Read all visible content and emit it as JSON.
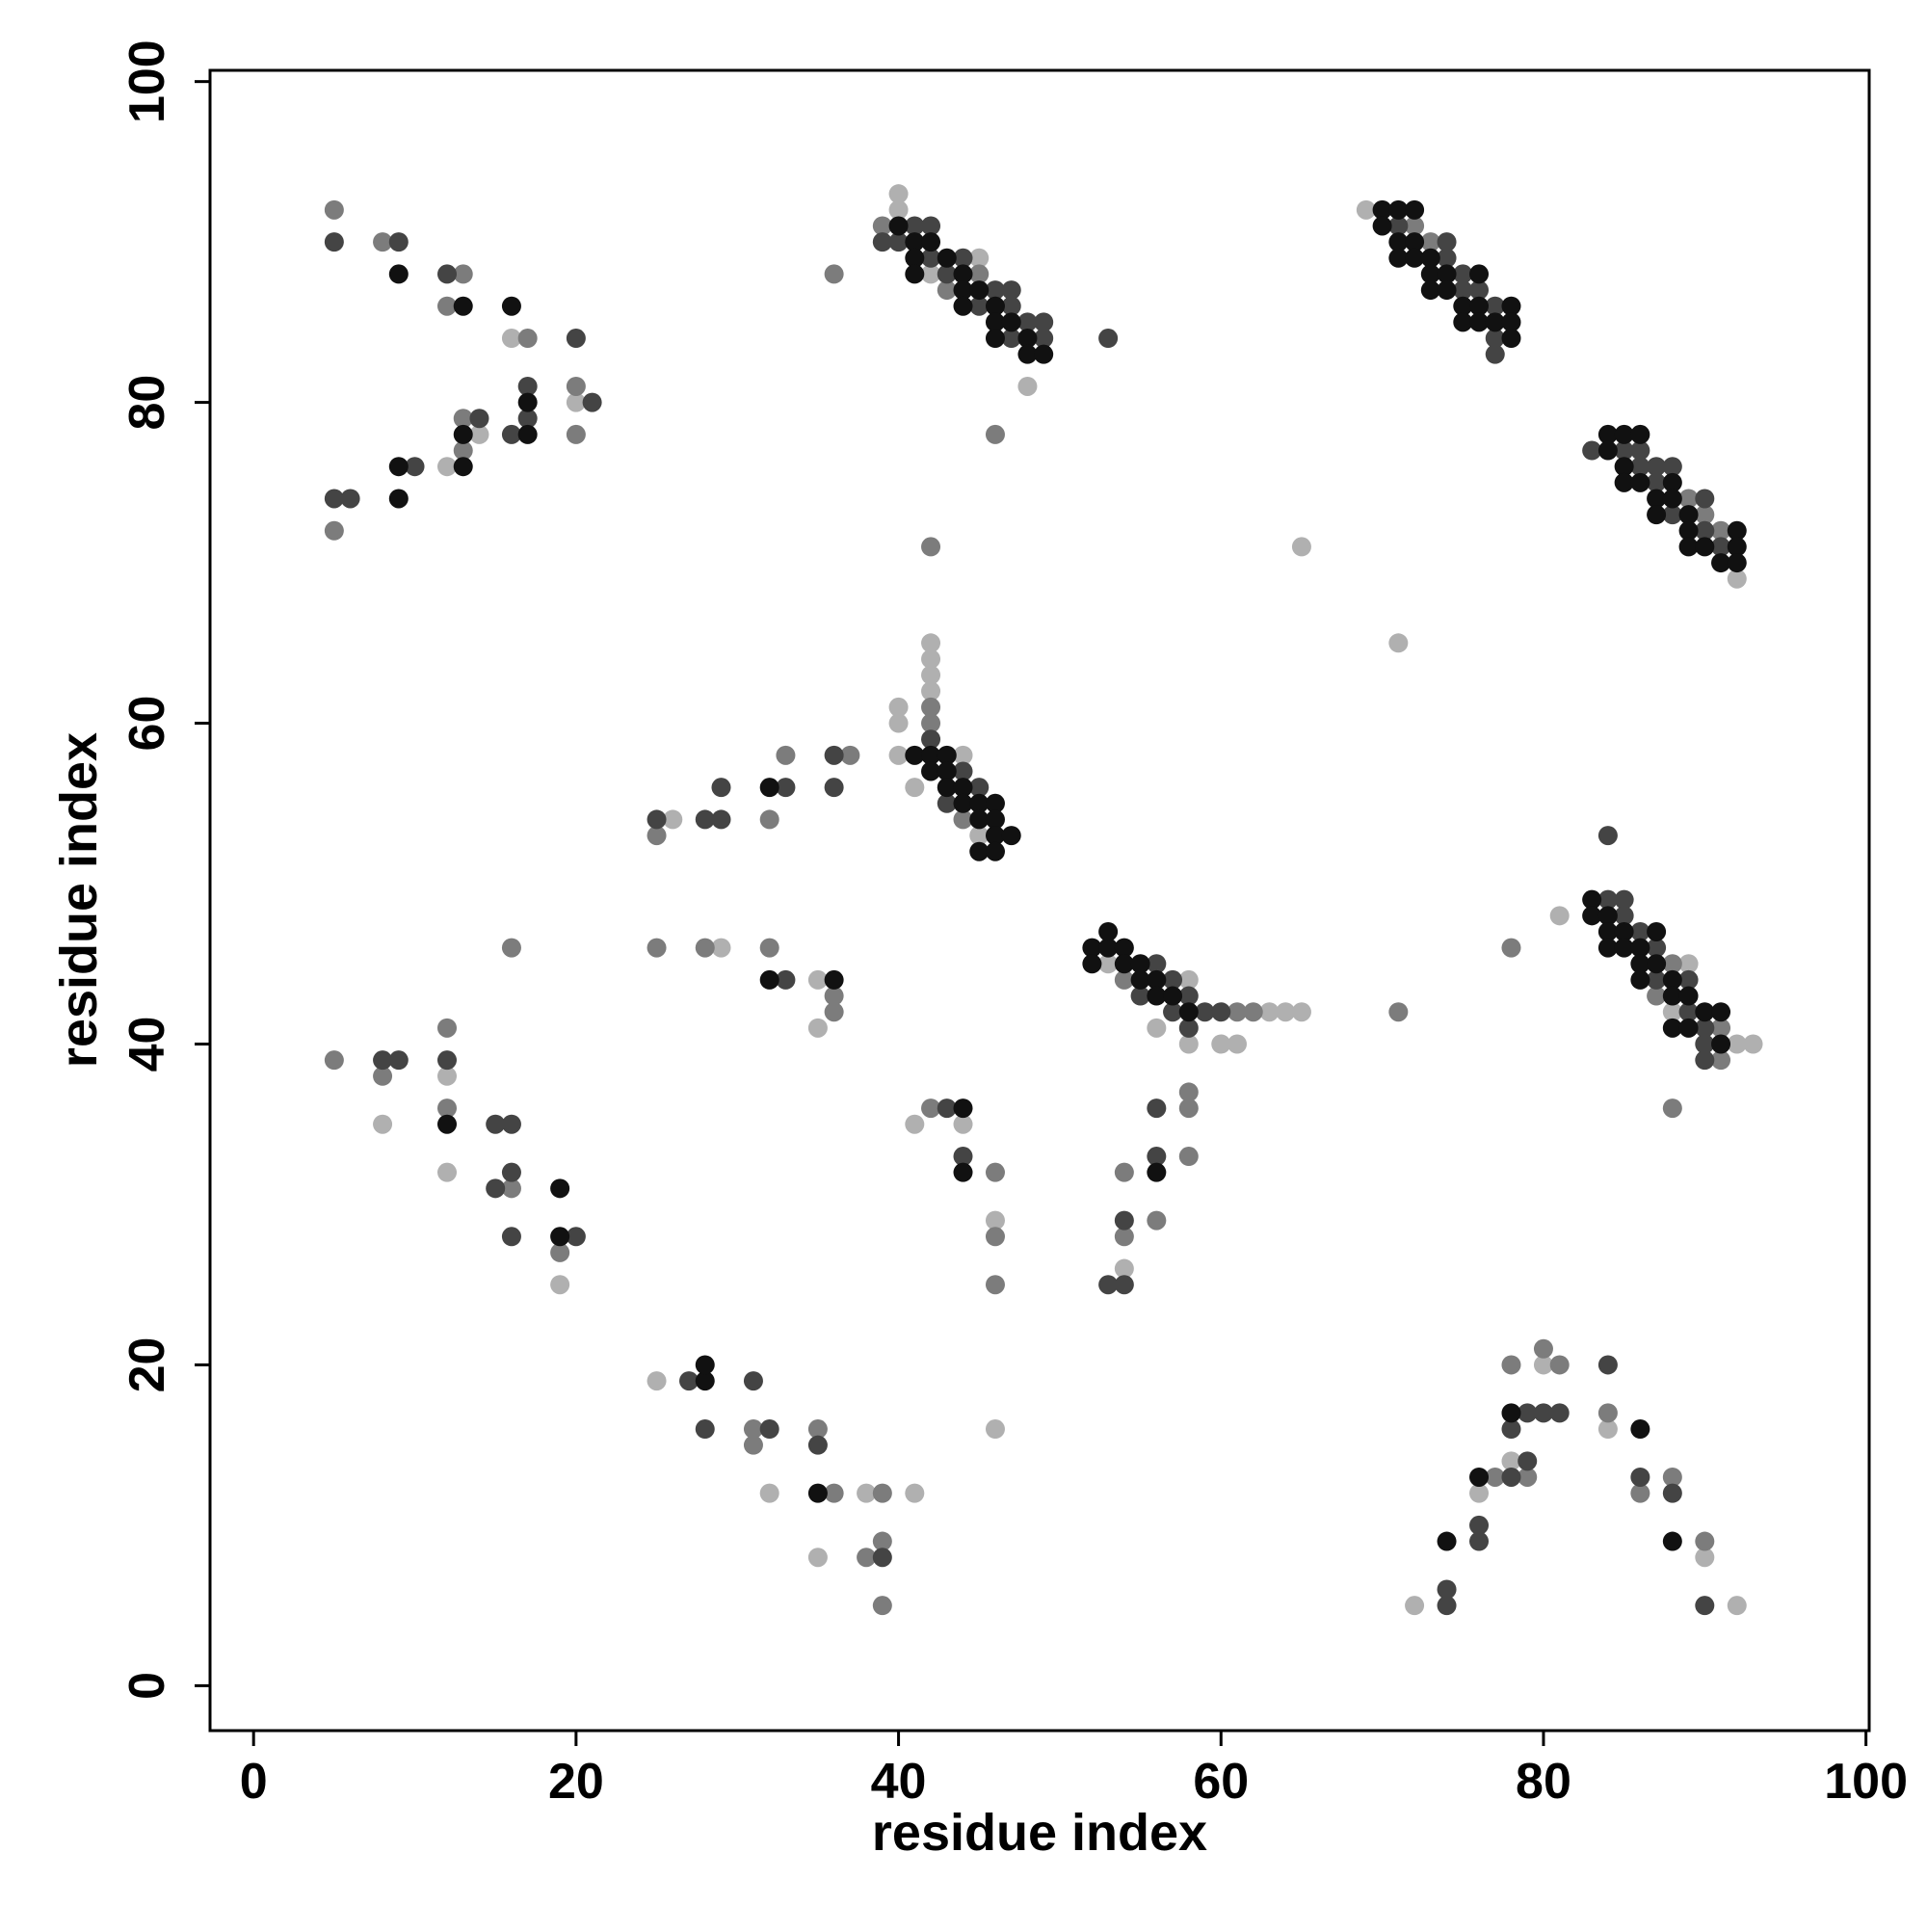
{
  "chart_data": {
    "type": "scatter",
    "x_label": "residue index",
    "y_label": "residue index",
    "xlim": [
      -2.7,
      100.2
    ],
    "ylim": [
      -2.8,
      100.7
    ],
    "xticks": [
      0,
      20,
      40,
      60,
      80,
      100
    ],
    "yticks": [
      0,
      20,
      40,
      60,
      80,
      100
    ],
    "series": [
      {
        "color": "#b0b0b0",
        "x": [
          16,
          20,
          14,
          12,
          40,
          40,
          45,
          42,
          48,
          69,
          65,
          71,
          92,
          42,
          42,
          42,
          42,
          40,
          40,
          40,
          44,
          41,
          45,
          26,
          29,
          35,
          35,
          53,
          58,
          63,
          64,
          65,
          56,
          58,
          60,
          61,
          81,
          89,
          88,
          92,
          93,
          12,
          8,
          12,
          19,
          41,
          44,
          46,
          54,
          25,
          32,
          35,
          38,
          41,
          46,
          80,
          84,
          78,
          76,
          90,
          72,
          92
        ],
        "y": [
          84,
          80,
          78,
          76,
          93,
          92,
          89,
          88,
          81,
          92,
          71,
          65,
          69,
          65,
          64,
          63,
          62,
          61,
          60,
          58,
          58,
          56,
          53,
          54,
          46,
          44,
          41,
          45,
          44,
          42,
          42,
          42,
          41,
          40,
          40,
          40,
          48,
          45,
          42,
          40,
          40,
          38,
          35,
          32,
          25,
          35,
          35,
          29,
          26,
          19,
          12,
          8,
          12,
          12,
          16,
          20,
          16,
          14,
          12,
          8,
          5,
          5
        ]
      },
      {
        "color": "#7c7c7c",
        "x": [
          5,
          8,
          13,
          12,
          17,
          20,
          13,
          20,
          13,
          5,
          39,
          45,
          43,
          36,
          46,
          42,
          72,
          73,
          89,
          90,
          91,
          42,
          42,
          44,
          25,
          32,
          33,
          37,
          25,
          28,
          32,
          36,
          36,
          16,
          54,
          61,
          62,
          88,
          87,
          91,
          91,
          78,
          71,
          88,
          5,
          8,
          12,
          12,
          16,
          19,
          42,
          46,
          46,
          46,
          54,
          54,
          56,
          58,
          58,
          58,
          31,
          31,
          35,
          36,
          39,
          38,
          39,
          39,
          80,
          78,
          81,
          84,
          77,
          79,
          88,
          86,
          90
        ],
        "y": [
          92,
          90,
          88,
          86,
          84,
          81,
          79,
          78,
          77,
          72,
          91,
          88,
          87,
          88,
          78,
          71,
          91,
          90,
          74,
          73,
          72,
          61,
          60,
          54,
          53,
          54,
          58,
          58,
          46,
          46,
          46,
          43,
          42,
          46,
          44,
          42,
          42,
          45,
          43,
          41,
          39,
          46,
          42,
          36,
          39,
          38,
          41,
          36,
          31,
          27,
          36,
          32,
          28,
          25,
          28,
          32,
          29,
          37,
          36,
          33,
          16,
          15,
          16,
          12,
          12,
          8,
          9,
          5,
          21,
          20,
          20,
          17,
          13,
          13,
          13,
          12,
          9
        ]
      },
      {
        "color": "#444444",
        "x": [
          5,
          9,
          12,
          20,
          17,
          21,
          14,
          17,
          16,
          10,
          5,
          6,
          41,
          42,
          39,
          40,
          42,
          44,
          43,
          46,
          47,
          45,
          47,
          48,
          49,
          47,
          49,
          53,
          71,
          74,
          74,
          75,
          75,
          76,
          77,
          77,
          77,
          83,
          85,
          86,
          86,
          87,
          88,
          87,
          90,
          88,
          90,
          91,
          42,
          44,
          45,
          43,
          25,
          28,
          29,
          29,
          33,
          36,
          36,
          33,
          56,
          57,
          55,
          58,
          57,
          59,
          60,
          58,
          84,
          84,
          85,
          85,
          86,
          87,
          87,
          89,
          89,
          90,
          90,
          90,
          8,
          9,
          12,
          15,
          16,
          16,
          15,
          16,
          20,
          43,
          44,
          53,
          54,
          54,
          56,
          56,
          27,
          28,
          31,
          32,
          35,
          39,
          84,
          79,
          80,
          81,
          78,
          79,
          78,
          86,
          88,
          76,
          76,
          74,
          74,
          90
        ],
        "y": [
          90,
          90,
          88,
          84,
          81,
          80,
          79,
          79,
          78,
          76,
          74,
          74,
          91,
          91,
          90,
          90,
          89,
          89,
          88,
          87,
          87,
          86,
          86,
          85,
          85,
          84,
          84,
          84,
          91,
          90,
          89,
          88,
          87,
          87,
          86,
          84,
          83,
          77,
          77,
          77,
          76,
          76,
          76,
          75,
          74,
          73,
          72,
          71,
          59,
          57,
          56,
          55,
          54,
          54,
          54,
          56,
          56,
          58,
          56,
          44,
          45,
          44,
          43,
          43,
          42,
          42,
          42,
          41,
          53,
          49,
          49,
          48,
          47,
          46,
          44,
          44,
          42,
          41,
          40,
          39,
          39,
          39,
          39,
          35,
          35,
          32,
          31,
          28,
          28,
          36,
          33,
          25,
          25,
          29,
          36,
          33,
          19,
          16,
          19,
          16,
          15,
          8,
          20,
          17,
          17,
          17,
          16,
          14,
          13,
          13,
          12,
          10,
          9,
          6,
          5,
          5
        ]
      },
      {
        "color": "#111111",
        "x": [
          9,
          13,
          16,
          17,
          13,
          17,
          13,
          9,
          9,
          40,
          41,
          42,
          41,
          43,
          41,
          44,
          44,
          45,
          44,
          46,
          46,
          47,
          46,
          48,
          48,
          49,
          70,
          71,
          72,
          70,
          71,
          72,
          71,
          72,
          73,
          73,
          74,
          76,
          73,
          74,
          75,
          76,
          78,
          75,
          76,
          77,
          78,
          78,
          84,
          85,
          86,
          84,
          85,
          85,
          86,
          88,
          87,
          88,
          87,
          89,
          89,
          92,
          89,
          90,
          92,
          91,
          92,
          41,
          42,
          43,
          42,
          43,
          43,
          44,
          44,
          45,
          46,
          45,
          46,
          46,
          47,
          45,
          46,
          32,
          32,
          36,
          52,
          53,
          54,
          52,
          54,
          55,
          53,
          55,
          56,
          56,
          57,
          58,
          83,
          83,
          84,
          84,
          85,
          87,
          84,
          85,
          86,
          86,
          87,
          86,
          88,
          88,
          89,
          90,
          91,
          88,
          89,
          91,
          12,
          19,
          19,
          44,
          44,
          56,
          28,
          28,
          35,
          78,
          86,
          76,
          74,
          88
        ],
        "y": [
          88,
          86,
          86,
          80,
          78,
          78,
          76,
          76,
          74,
          91,
          90,
          90,
          89,
          89,
          88,
          88,
          87,
          87,
          86,
          86,
          85,
          85,
          84,
          84,
          83,
          83,
          92,
          92,
          92,
          91,
          90,
          90,
          89,
          89,
          89,
          88,
          88,
          88,
          87,
          87,
          86,
          86,
          86,
          85,
          85,
          85,
          85,
          84,
          78,
          78,
          78,
          77,
          76,
          75,
          75,
          75,
          74,
          74,
          73,
          73,
          72,
          72,
          71,
          71,
          71,
          70,
          70,
          58,
          58,
          58,
          57,
          57,
          56,
          56,
          55,
          55,
          55,
          54,
          54,
          53,
          53,
          52,
          52,
          56,
          44,
          44,
          46,
          46,
          46,
          45,
          45,
          45,
          47,
          44,
          44,
          43,
          43,
          42,
          49,
          48,
          48,
          47,
          47,
          47,
          46,
          46,
          46,
          45,
          45,
          44,
          44,
          43,
          43,
          42,
          42,
          41,
          41,
          40,
          35,
          31,
          28,
          36,
          32,
          32,
          19,
          20,
          12,
          17,
          16,
          13,
          9,
          9
        ]
      }
    ]
  }
}
